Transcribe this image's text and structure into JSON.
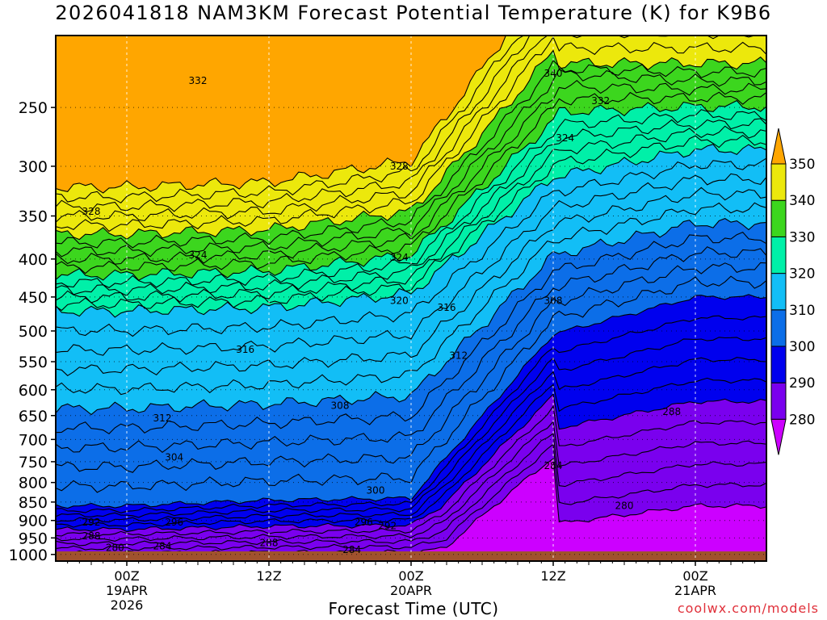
{
  "chart_data": {
    "type": "heatmap",
    "title": "2026041818 NAM3KM Forecast Potential Temperature (K) for K9B6",
    "xlabel": "Forecast Time (UTC)",
    "ylabel": "",
    "yaxis": {
      "range_hpa": [
        1000,
        200
      ],
      "ticks": [
        1000,
        950,
        900,
        850,
        800,
        750,
        700,
        650,
        600,
        550,
        500,
        450,
        400,
        350,
        300,
        250
      ]
    },
    "xaxis": {
      "range_hours_from_init": [
        0,
        60
      ],
      "ticks": [
        {
          "hour": 6,
          "labels": [
            "00Z",
            "19APR",
            "2026"
          ]
        },
        {
          "hour": 18,
          "labels": [
            "12Z"
          ]
        },
        {
          "hour": 30,
          "labels": [
            "00Z",
            "20APR"
          ]
        },
        {
          "hour": 42,
          "labels": [
            "12Z"
          ]
        },
        {
          "hour": 54,
          "labels": [
            "00Z",
            "21APR"
          ]
        }
      ]
    },
    "colorbar": {
      "levels": [
        280,
        290,
        300,
        310,
        320,
        330,
        340,
        350
      ],
      "colors": [
        "#cc00ff",
        "#7a00ee",
        "#0000ee",
        "#0c6ee8",
        "#12bef6",
        "#00f0a8",
        "#3cd61e",
        "#ece80c",
        "#ffa600"
      ]
    },
    "contour_interval_K": 2,
    "contour_labels": [
      "332",
      "340",
      "332",
      "324",
      "328",
      "328",
      "324",
      "324",
      "320",
      "316",
      "316",
      "312",
      "308",
      "312",
      "308",
      "304",
      "304",
      "288",
      "300",
      "284",
      "280",
      "292",
      "296",
      "296",
      "292",
      "288",
      "288",
      "280",
      "284",
      "284"
    ],
    "isentrope_profiles": [
      {
        "hour": 6,
        "pressure_at_theta": {
          "280": 990,
          "284": 975,
          "288": 955,
          "292": 925,
          "296": 905,
          "300": 860,
          "304": 750,
          "308": 690,
          "312": 620,
          "316": 540,
          "320": 470,
          "324": 395,
          "328": 345
        }
      },
      {
        "hour": 18,
        "pressure_at_theta": {
          "284": 985,
          "288": 965,
          "292": 955,
          "296": 930,
          "300": 845,
          "304": 750,
          "308": 670,
          "312": 600,
          "316": 530,
          "320": 465,
          "324": 400,
          "328": 360
        }
      },
      {
        "hour": 30,
        "pressure_at_theta": {
          "284": 985,
          "288": 940,
          "292": 910,
          "296": 880,
          "300": 840,
          "304": 735,
          "308": 640,
          "312": 565,
          "316": 480,
          "320": 445,
          "324": 400,
          "328": 300
        }
      },
      {
        "hour": 42,
        "pressure_at_theta": {
          "280": 910,
          "284": 780,
          "288": 675,
          "292": 600,
          "296": 545,
          "300": 505,
          "304": 470,
          "308": 430,
          "312": 380,
          "316": 345,
          "320": 310,
          "324": 285,
          "328": 265,
          "332": 240,
          "336": 225,
          "340": 218
        }
      },
      {
        "hour": 54,
        "pressure_at_theta": {
          "280": 860,
          "284": 770,
          "288": 680,
          "292": 580,
          "296": 500,
          "300": 450,
          "304": 405,
          "308": 370,
          "312": 340,
          "316": 310,
          "320": 285,
          "324": 265,
          "328": 255,
          "332": 240,
          "336": 230,
          "340": 218
        }
      }
    ]
  },
  "branding": {
    "credit": "coolwx.com/models"
  }
}
